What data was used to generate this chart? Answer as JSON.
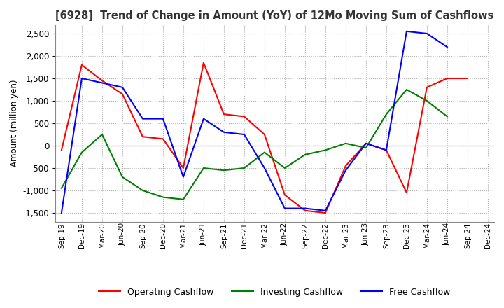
{
  "title": "[6928]  Trend of Change in Amount (YoY) of 12Mo Moving Sum of Cashflows",
  "ylabel": "Amount (million yen)",
  "ylim": [
    -1700,
    2700
  ],
  "yticks": [
    -1500,
    -1000,
    -500,
    0,
    500,
    1000,
    1500,
    2000,
    2500
  ],
  "x_labels": [
    "Sep-19",
    "Dec-19",
    "Mar-20",
    "Jun-20",
    "Sep-20",
    "Dec-20",
    "Mar-21",
    "Jun-21",
    "Sep-21",
    "Dec-21",
    "Mar-22",
    "Jun-22",
    "Sep-22",
    "Dec-22",
    "Mar-23",
    "Jun-23",
    "Sep-23",
    "Dec-23",
    "Mar-24",
    "Jun-24",
    "Sep-24",
    "Dec-24"
  ],
  "operating": [
    -100,
    1800,
    1450,
    1150,
    200,
    150,
    -500,
    1850,
    700,
    650,
    250,
    -1100,
    -1450,
    -1500,
    -450,
    50,
    -100,
    -1050,
    1300,
    1500,
    1500,
    null
  ],
  "investing": [
    -950,
    -150,
    250,
    -700,
    -1000,
    -1150,
    -1200,
    -500,
    -550,
    -500,
    -150,
    -500,
    -200,
    -100,
    50,
    -50,
    700,
    1250,
    1000,
    650,
    null,
    null
  ],
  "free": [
    -1500,
    1500,
    1400,
    1300,
    600,
    600,
    -700,
    600,
    300,
    250,
    -500,
    -1400,
    -1400,
    -1450,
    -550,
    50,
    -100,
    2550,
    2500,
    2200,
    null,
    null
  ],
  "colors": {
    "operating": "#ff0000",
    "investing": "#008000",
    "free": "#0000ff"
  },
  "background": "#ffffff",
  "grid_color": "#b0b0b0"
}
